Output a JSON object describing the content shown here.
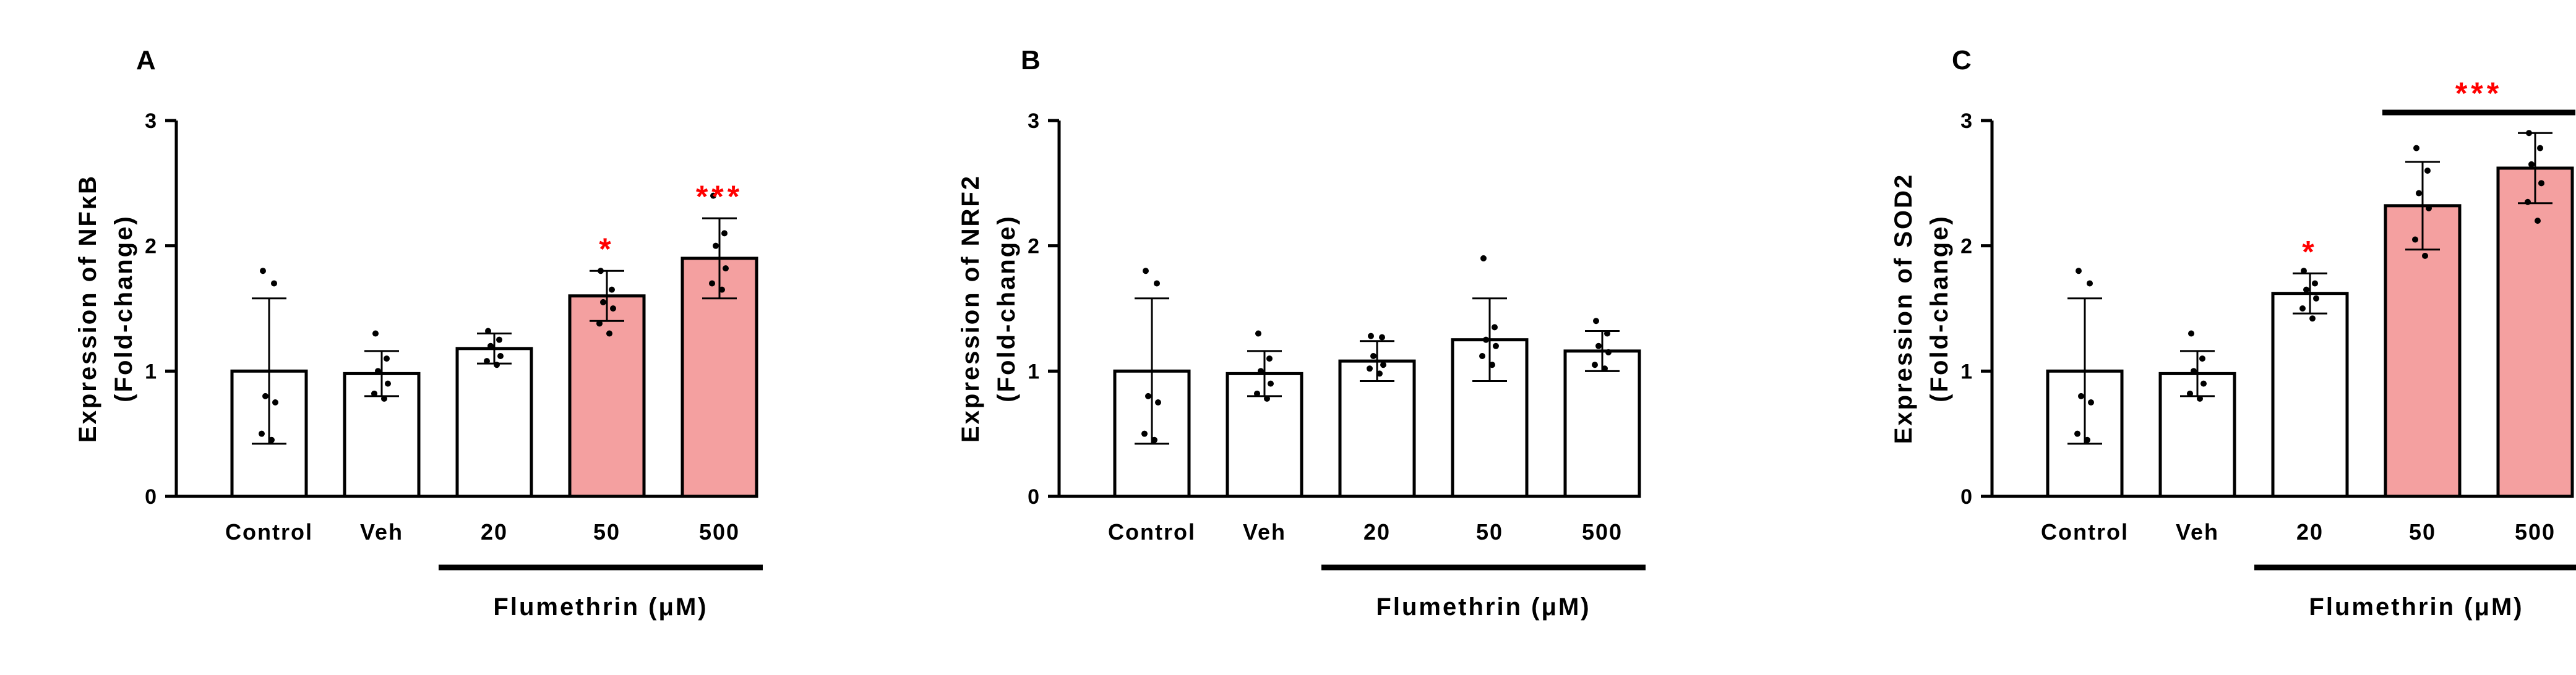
{
  "chart_data": [
    {
      "type": "bar",
      "panel": "A",
      "ylabel": "Expression of NFκB",
      "ylabel_line2": "(Fold-change)",
      "categories": [
        "Control",
        "Veh",
        "20",
        "50",
        "500"
      ],
      "values": [
        1.0,
        0.98,
        1.18,
        1.6,
        1.9
      ],
      "error": [
        0.58,
        0.18,
        0.12,
        0.2,
        0.32
      ],
      "points": [
        [
          1.8,
          1.7,
          0.8,
          0.75,
          0.5,
          0.45
        ],
        [
          1.3,
          1.1,
          1.0,
          0.9,
          0.82,
          0.78
        ],
        [
          1.32,
          1.25,
          1.2,
          1.12,
          1.08,
          1.05
        ],
        [
          1.8,
          1.65,
          1.55,
          1.5,
          1.38,
          1.3
        ],
        [
          2.4,
          2.1,
          2.0,
          1.82,
          1.7,
          1.65
        ]
      ],
      "bar_colors": [
        "#ffffff",
        "#ffffff",
        "#ffffff",
        "#f4a0a0",
        "#f4a0a0"
      ],
      "significance": [
        "",
        "",
        "",
        "*",
        "***"
      ],
      "group_label": "Flumethrin (μM)",
      "ylim": [
        0,
        3
      ],
      "yticks": [
        "0",
        "1",
        "2",
        "3"
      ]
    },
    {
      "type": "bar",
      "panel": "B",
      "ylabel": "Expression of NRF2",
      "ylabel_line2": "(Fold-change)",
      "categories": [
        "Control",
        "Veh",
        "20",
        "50",
        "500"
      ],
      "values": [
        1.0,
        0.98,
        1.08,
        1.25,
        1.16
      ],
      "error": [
        0.58,
        0.18,
        0.16,
        0.33,
        0.16
      ],
      "points": [
        [
          1.8,
          1.7,
          0.8,
          0.75,
          0.5,
          0.45
        ],
        [
          1.3,
          1.1,
          1.0,
          0.9,
          0.82,
          0.78
        ],
        [
          1.28,
          1.27,
          1.12,
          1.05,
          1.02,
          0.98
        ],
        [
          1.9,
          1.35,
          1.25,
          1.2,
          1.12,
          1.05
        ],
        [
          1.4,
          1.3,
          1.2,
          1.15,
          1.05,
          1.02
        ]
      ],
      "bar_colors": [
        "#ffffff",
        "#ffffff",
        "#ffffff",
        "#ffffff",
        "#ffffff"
      ],
      "significance": [
        "",
        "",
        "",
        "",
        ""
      ],
      "group_label": "Flumethrin (μM)",
      "ylim": [
        0,
        3
      ],
      "yticks": [
        "0",
        "1",
        "2",
        "3"
      ]
    },
    {
      "type": "bar",
      "panel": "C",
      "ylabel": "Expression of SOD2",
      "ylabel_line2": "(Fold-change)",
      "categories": [
        "Control",
        "Veh",
        "20",
        "50",
        "500"
      ],
      "values": [
        1.0,
        0.98,
        1.62,
        2.32,
        2.62
      ],
      "error": [
        0.58,
        0.18,
        0.16,
        0.35,
        0.28
      ],
      "points": [
        [
          1.8,
          1.7,
          0.8,
          0.75,
          0.5,
          0.45
        ],
        [
          1.3,
          1.1,
          1.0,
          0.9,
          0.82,
          0.78
        ],
        [
          1.8,
          1.7,
          1.65,
          1.58,
          1.5,
          1.42
        ],
        [
          2.78,
          2.6,
          2.42,
          2.3,
          2.05,
          1.92
        ],
        [
          2.9,
          2.78,
          2.65,
          2.5,
          2.35,
          2.2
        ]
      ],
      "bar_colors": [
        "#ffffff",
        "#ffffff",
        "#ffffff",
        "#f4a0a0",
        "#f4a0a0"
      ],
      "significance": [
        "",
        "",
        "*",
        "",
        ""
      ],
      "bracket": {
        "from": 3,
        "to": 4,
        "label": "***"
      },
      "group_label": "Flumethrin (μM)",
      "ylim": [
        0,
        3
      ],
      "yticks": [
        "0",
        "1",
        "2",
        "3"
      ]
    }
  ],
  "colors": {
    "sig": "#ff0000",
    "axis": "#000000",
    "highlight_bar": "#f4a0a0"
  }
}
